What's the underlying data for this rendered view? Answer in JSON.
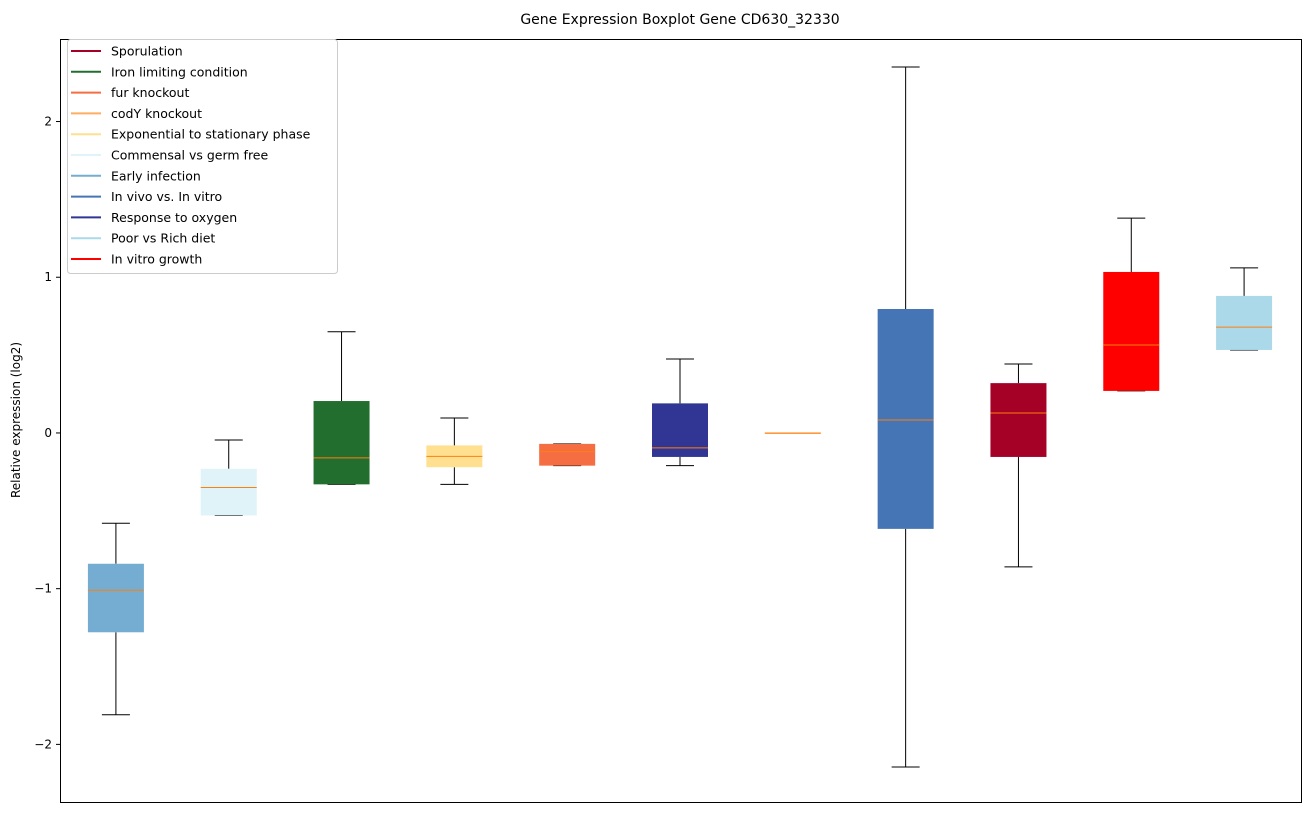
{
  "chart_data": {
    "type": "boxplot",
    "title": "Gene Expression Boxplot Gene CD630_32330",
    "xlabel": "",
    "ylabel": "Relative expression (log2)",
    "ylim": [
      -2.37,
      2.53
    ],
    "yticks": [
      -2,
      -1,
      0,
      1,
      2
    ],
    "ytick_labels": [
      "−2",
      "−1",
      "0",
      "1",
      "2"
    ],
    "grid": false,
    "legend_position": "top-left",
    "median_color": "#ff7f0e",
    "legend": [
      {
        "name": "Sporulation",
        "color": "#a50026"
      },
      {
        "name": "Iron limiting condition",
        "color": "#226e2e"
      },
      {
        "name": "fur knockout",
        "color": "#f46d43"
      },
      {
        "name": "codY knockout",
        "color": "#fdae61"
      },
      {
        "name": "Exponential to stationary phase",
        "color": "#fee090"
      },
      {
        "name": "Commensal vs germ free",
        "color": "#e0f3f8"
      },
      {
        "name": "Early infection",
        "color": "#74add1"
      },
      {
        "name": "In vivo vs. In vitro",
        "color": "#4575b4"
      },
      {
        "name": "Response to oxygen",
        "color": "#313695"
      },
      {
        "name": "Poor vs Rich diet",
        "color": "#abd9e9"
      },
      {
        "name": "In vitro growth",
        "color": "#ff0000"
      }
    ],
    "boxes": [
      {
        "series": "Early infection",
        "color": "#74add1",
        "whisker_low": -1.81,
        "q1": -1.28,
        "median": -1.01,
        "q3": -0.84,
        "whisker_high": -0.58
      },
      {
        "series": "Commensal vs germ free",
        "color": "#e0f3f8",
        "whisker_low": -0.53,
        "q1": -0.53,
        "median": -0.35,
        "q3": -0.23,
        "whisker_high": -0.045
      },
      {
        "series": "Iron limiting condition",
        "color": "#226e2e",
        "whisker_low": -0.33,
        "q1": -0.33,
        "median": -0.16,
        "q3": 0.205,
        "whisker_high": 0.65
      },
      {
        "series": "Exponential to stationary phase",
        "color": "#fee090",
        "whisker_low": -0.33,
        "q1": -0.22,
        "median": -0.15,
        "q3": -0.08,
        "whisker_high": 0.096
      },
      {
        "series": "fur knockout",
        "color": "#f46d43",
        "whisker_low": -0.21,
        "q1": -0.21,
        "median": -0.12,
        "q3": -0.07,
        "whisker_high": -0.07
      },
      {
        "series": "Response to oxygen",
        "color": "#313695",
        "whisker_low": -0.21,
        "q1": -0.154,
        "median": -0.096,
        "q3": 0.19,
        "whisker_high": 0.475
      },
      {
        "series": "codY knockout",
        "color": "#fdae61",
        "whisker_low": 0.0,
        "q1": 0.0,
        "median": 0.0,
        "q3": 0.0,
        "whisker_high": 0.0
      },
      {
        "series": "In vivo vs. In vitro",
        "color": "#4575b4",
        "whisker_low": -2.145,
        "q1": -0.616,
        "median": 0.083,
        "q3": 0.796,
        "whisker_high": 2.35
      },
      {
        "series": "Sporulation",
        "color": "#a50026",
        "whisker_low": -0.86,
        "q1": -0.154,
        "median": 0.128,
        "q3": 0.32,
        "whisker_high": 0.443
      },
      {
        "series": "In vitro growth",
        "color": "#ff0000",
        "whisker_low": 0.27,
        "q1": 0.27,
        "median": 0.565,
        "q3": 1.034,
        "whisker_high": 1.38
      },
      {
        "series": "Poor vs Rich diet",
        "color": "#abd9e9",
        "whisker_low": 0.533,
        "q1": 0.533,
        "median": 0.68,
        "q3": 0.88,
        "whisker_high": 1.06
      }
    ]
  }
}
